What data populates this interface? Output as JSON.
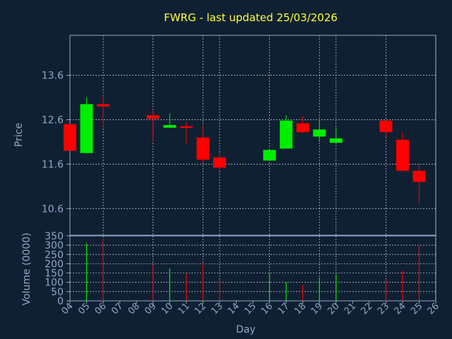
{
  "chart_data": [
    {
      "type": "candlestick",
      "title": "FWRG - last updated 25/03/2026",
      "ylabel": "Price",
      "ylim": [
        10.0,
        14.5
      ],
      "yticks": [
        "13.6",
        "12.6",
        "11.6",
        "10.6"
      ],
      "grid": true,
      "colors": {
        "up": "#00ee00",
        "down": "#ff0000",
        "background": "#0f2032",
        "axis": "#8ea8c6",
        "title": "#ffff33"
      },
      "candles": [
        {
          "x": "04",
          "open": 12.5,
          "high": 12.5,
          "low": 11.9,
          "close": 11.9
        },
        {
          "x": "05",
          "open": 11.85,
          "high": 13.1,
          "low": 11.85,
          "close": 12.95
        },
        {
          "x": "06",
          "open": 12.95,
          "high": 13.15,
          "low": 12.45,
          "close": 12.9
        },
        {
          "x": "09",
          "open": 12.7,
          "high": 12.82,
          "low": 12.1,
          "close": 12.62
        },
        {
          "x": "10",
          "open": 12.42,
          "high": 12.75,
          "low": 12.42,
          "close": 12.48
        },
        {
          "x": "11",
          "open": 12.45,
          "high": 12.55,
          "low": 12.05,
          "close": 12.42
        },
        {
          "x": "12",
          "open": 12.2,
          "high": 12.45,
          "low": 11.62,
          "close": 11.7
        },
        {
          "x": "13",
          "open": 11.75,
          "high": 11.85,
          "low": 11.45,
          "close": 11.52
        },
        {
          "x": "16",
          "open": 11.68,
          "high": 11.92,
          "low": 11.68,
          "close": 11.92
        },
        {
          "x": "17",
          "open": 11.95,
          "high": 12.7,
          "low": 11.95,
          "close": 12.58
        },
        {
          "x": "18",
          "open": 12.52,
          "high": 12.68,
          "low": 12.3,
          "close": 12.32
        },
        {
          "x": "19",
          "open": 12.22,
          "high": 12.6,
          "low": 12.1,
          "close": 12.38
        },
        {
          "x": "20",
          "open": 12.08,
          "high": 12.42,
          "low": 12.08,
          "close": 12.18
        },
        {
          "x": "23",
          "open": 12.58,
          "high": 12.58,
          "low": 12.2,
          "close": 12.32
        },
        {
          "x": "24",
          "open": 12.15,
          "high": 12.32,
          "low": 11.45,
          "close": 11.45
        },
        {
          "x": "25",
          "open": 11.45,
          "high": 11.6,
          "low": 10.7,
          "close": 11.2
        }
      ]
    },
    {
      "type": "bar",
      "xlabel": "Day",
      "ylabel": "Volume (0000)",
      "ylim": [
        0,
        350
      ],
      "yticks": [
        "0",
        "50",
        "100",
        "150",
        "200",
        "250",
        "300",
        "350"
      ],
      "grid": true,
      "categories": [
        "04",
        "05",
        "06",
        "07",
        "08",
        "09",
        "10",
        "11",
        "12",
        "13",
        "14",
        "15",
        "16",
        "17",
        "18",
        "19",
        "20",
        "21",
        "22",
        "23",
        "24",
        "25",
        "26"
      ],
      "bars": [
        {
          "x": "05",
          "value": 310,
          "color": "#00ee00"
        },
        {
          "x": "06",
          "value": 335,
          "color": "#ff0000"
        },
        {
          "x": "09",
          "value": 195,
          "color": "#ff0000"
        },
        {
          "x": "10",
          "value": 175,
          "color": "#00ee00"
        },
        {
          "x": "11",
          "value": 148,
          "color": "#ff0000"
        },
        {
          "x": "12",
          "value": 205,
          "color": "#ff0000"
        },
        {
          "x": "13",
          "value": 115,
          "color": "#ff0000"
        },
        {
          "x": "16",
          "value": 145,
          "color": "#00ee00"
        },
        {
          "x": "17",
          "value": 102,
          "color": "#00ee00"
        },
        {
          "x": "18",
          "value": 85,
          "color": "#ff0000"
        },
        {
          "x": "19",
          "value": 125,
          "color": "#00ee00"
        },
        {
          "x": "20",
          "value": 142,
          "color": "#00ee00"
        },
        {
          "x": "23",
          "value": 118,
          "color": "#ff0000"
        },
        {
          "x": "24",
          "value": 162,
          "color": "#ff0000"
        },
        {
          "x": "25",
          "value": 295,
          "color": "#ff0000"
        }
      ]
    }
  ]
}
